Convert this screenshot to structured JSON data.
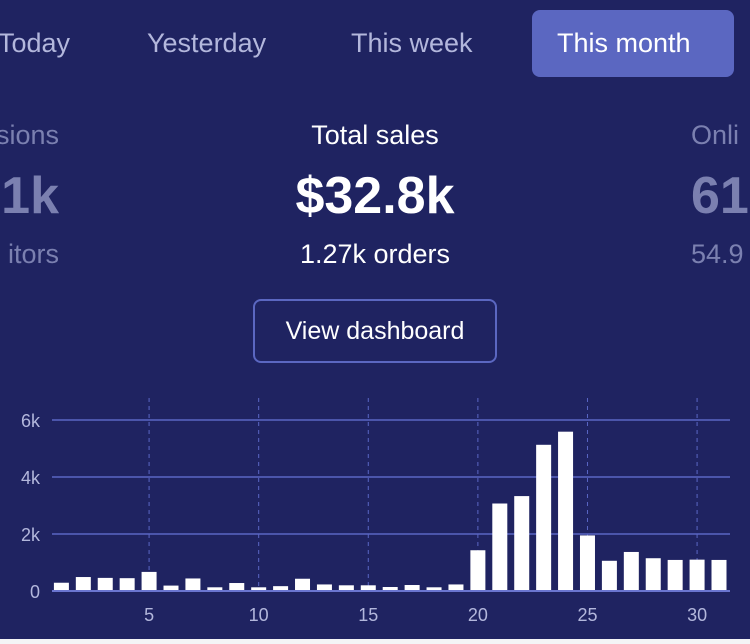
{
  "tabs": [
    {
      "label": "Today",
      "active": false
    },
    {
      "label": "Yesterday",
      "active": false
    },
    {
      "label": "This week",
      "active": false
    },
    {
      "label": "This month",
      "active": true
    }
  ],
  "stats": {
    "left": {
      "label": "sions",
      "value": "1k",
      "sub": "itors"
    },
    "center": {
      "label": "Total sales",
      "value": "$32.8k",
      "sub": "1.27k orders"
    },
    "right": {
      "label": "Onli",
      "value": "61",
      "sub": "54.9"
    }
  },
  "view_dashboard_label": "View dashboard",
  "colors": {
    "background": "#1f2361",
    "accent": "#5b67c1",
    "bar": "#ffffff",
    "grid": "#5a66c4"
  },
  "chart_data": {
    "type": "bar",
    "title": "",
    "xlabel": "",
    "ylabel": "",
    "x": [
      1,
      2,
      3,
      4,
      5,
      6,
      7,
      8,
      9,
      10,
      11,
      12,
      13,
      14,
      15,
      16,
      17,
      18,
      19,
      20,
      21,
      22,
      23,
      24,
      25,
      26,
      27,
      28,
      29,
      30,
      31
    ],
    "values": [
      290,
      490,
      460,
      450,
      670,
      190,
      440,
      130,
      280,
      130,
      170,
      430,
      230,
      200,
      200,
      140,
      210,
      130,
      230,
      1430,
      3070,
      3330,
      5130,
      5590,
      1950,
      1060,
      1370,
      1150,
      1090,
      1100,
      1090
    ],
    "ylim": [
      0,
      6000
    ],
    "yticks": [
      {
        "v": 0,
        "label": "0"
      },
      {
        "v": 2000,
        "label": "2k"
      },
      {
        "v": 4000,
        "label": "4k"
      },
      {
        "v": 6000,
        "label": "6k"
      }
    ],
    "xticks": [
      {
        "v": 5,
        "label": "5"
      },
      {
        "v": 10,
        "label": "10"
      },
      {
        "v": 15,
        "label": "15"
      },
      {
        "v": 20,
        "label": "20"
      },
      {
        "v": 25,
        "label": "25"
      },
      {
        "v": 30,
        "label": "30"
      }
    ],
    "grid": true
  }
}
